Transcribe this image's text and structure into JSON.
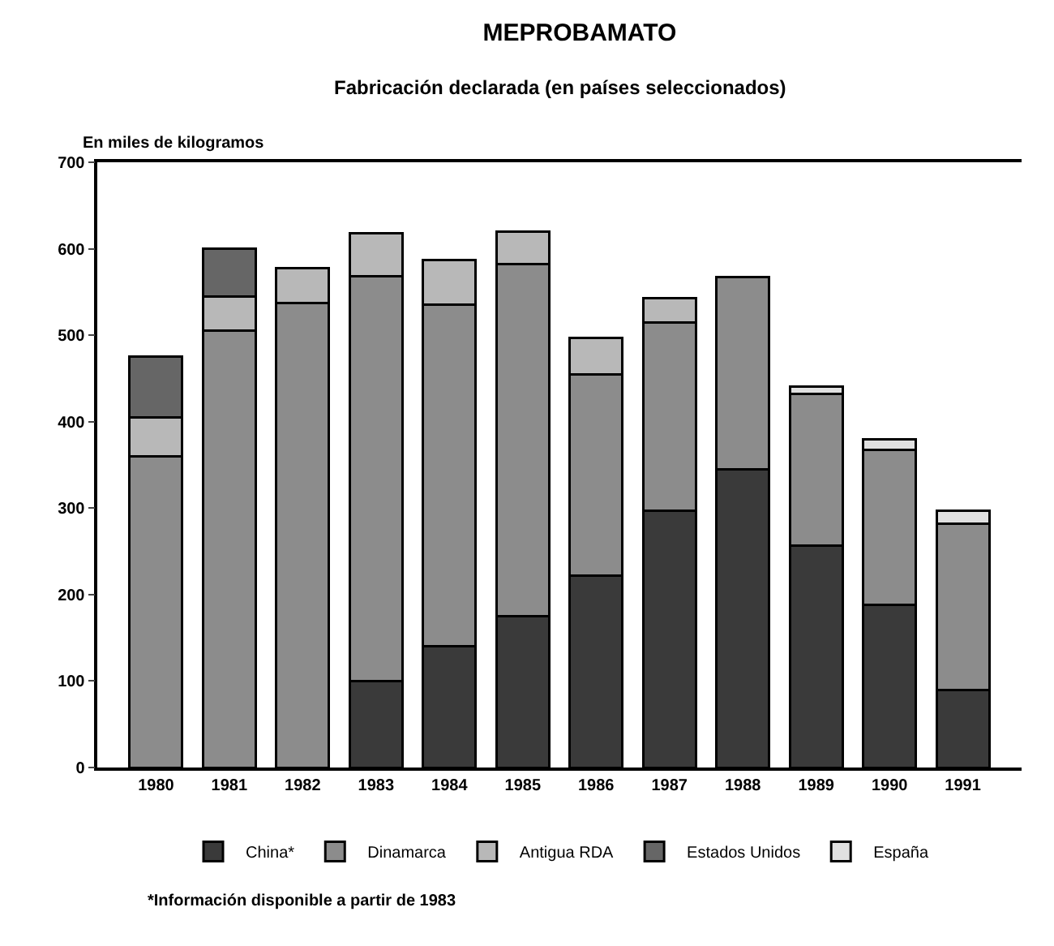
{
  "chart_data": {
    "type": "bar",
    "title": "MEPROBAMATO",
    "subtitle": "Fabricación declarada (en países seleccionados)",
    "ylabel": "En miles de kilogramos",
    "categories": [
      "1980",
      "1981",
      "1982",
      "1983",
      "1984",
      "1985",
      "1986",
      "1987",
      "1988",
      "1989",
      "1990",
      "1991"
    ],
    "stacked": true,
    "ylim": [
      0,
      700
    ],
    "yticks": [
      0,
      100,
      200,
      300,
      400,
      500,
      600,
      700
    ],
    "grid": false,
    "legend": "bottom",
    "series": [
      {
        "name": "China*",
        "color": "#3a3a3a",
        "values": [
          null,
          null,
          null,
          100,
          140,
          175,
          222,
          297,
          345,
          257,
          188,
          90
        ]
      },
      {
        "name": "Dinamarca",
        "color": "#8c8c8c",
        "values": [
          360,
          505,
          537,
          468,
          395,
          407,
          233,
          218,
          222,
          175,
          179,
          192
        ]
      },
      {
        "name": "Antigua RDA",
        "color": "#b8b8b8",
        "values": [
          45,
          40,
          41,
          50,
          52,
          38,
          42,
          28,
          null,
          null,
          null,
          null
        ]
      },
      {
        "name": "Estados Unidos",
        "color": "#666666",
        "values": [
          70,
          55,
          null,
          null,
          null,
          null,
          null,
          null,
          null,
          null,
          null,
          null
        ]
      },
      {
        "name": "España",
        "color": "#e0e0e0",
        "values": [
          null,
          null,
          null,
          null,
          null,
          null,
          null,
          null,
          null,
          9,
          13,
          15
        ]
      }
    ],
    "annotations": [
      "*Información disponible a partir de 1983"
    ]
  }
}
